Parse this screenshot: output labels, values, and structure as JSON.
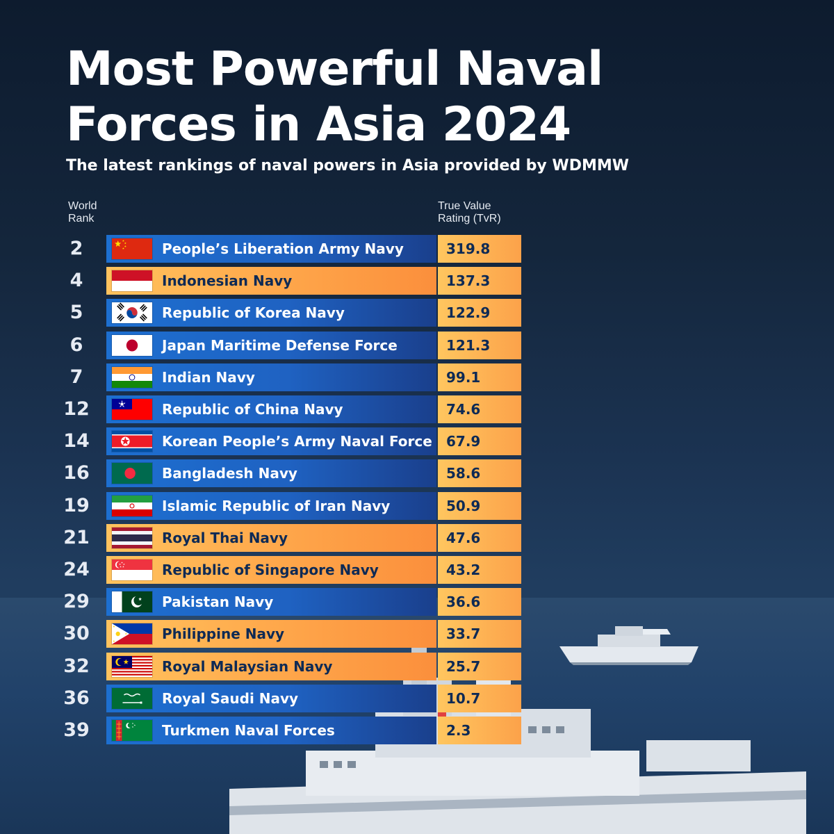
{
  "title": "Most Powerful Naval Forces in Asia 2024",
  "subtitle": "The latest rankings of naval powers in Asia provided by WDMMW",
  "headers": {
    "rank": "World Rank",
    "tvr": "True Value Rating (TvR)"
  },
  "colors": {
    "blue_bar": "#1f62c2",
    "orange_bar": "#ffab4d",
    "value_cell": "#fcb456",
    "dark_text": "#0e2a55"
  },
  "chart_data": {
    "type": "table",
    "title": "Most Powerful Naval Forces in Asia 2024",
    "columns": [
      "World Rank",
      "",
      "True Value Rating (TvR)"
    ],
    "rows": [
      {
        "rank": "2",
        "name": "People’s Liberation Army Navy",
        "tvr": "319.8",
        "flag": "china-flag-icon",
        "style": "blue"
      },
      {
        "rank": "4",
        "name": "Indonesian Navy",
        "tvr": "137.3",
        "flag": "indonesia-flag-icon",
        "style": "orange"
      },
      {
        "rank": "5",
        "name": "Republic of Korea Navy",
        "tvr": "122.9",
        "flag": "south-korea-flag-icon",
        "style": "blue"
      },
      {
        "rank": "6",
        "name": "Japan Maritime Defense Force",
        "tvr": "121.3",
        "flag": "japan-flag-icon",
        "style": "blue"
      },
      {
        "rank": "7",
        "name": "Indian Navy",
        "tvr": "99.1",
        "flag": "india-flag-icon",
        "style": "blue"
      },
      {
        "rank": "12",
        "name": "Republic of China Navy",
        "tvr": "74.6",
        "flag": "taiwan-flag-icon",
        "style": "blue"
      },
      {
        "rank": "14",
        "name": "Korean People’s Army Naval Force",
        "tvr": "67.9",
        "flag": "north-korea-flag-icon",
        "style": "blue"
      },
      {
        "rank": "16",
        "name": "Bangladesh Navy",
        "tvr": "58.6",
        "flag": "bangladesh-flag-icon",
        "style": "blue"
      },
      {
        "rank": "19",
        "name": "Islamic Republic of Iran Navy",
        "tvr": "50.9",
        "flag": "iran-flag-icon",
        "style": "blue"
      },
      {
        "rank": "21",
        "name": "Royal Thai Navy",
        "tvr": "47.6",
        "flag": "thailand-flag-icon",
        "style": "orange"
      },
      {
        "rank": "24",
        "name": "Republic of Singapore Navy",
        "tvr": "43.2",
        "flag": "singapore-flag-icon",
        "style": "orange"
      },
      {
        "rank": "29",
        "name": "Pakistan Navy",
        "tvr": "36.6",
        "flag": "pakistan-flag-icon",
        "style": "blue"
      },
      {
        "rank": "30",
        "name": "Philippine Navy",
        "tvr": "33.7",
        "flag": "philippines-flag-icon",
        "style": "orange"
      },
      {
        "rank": "32",
        "name": "Royal Malaysian Navy",
        "tvr": "25.7",
        "flag": "malaysia-flag-icon",
        "style": "orange"
      },
      {
        "rank": "36",
        "name": "Royal Saudi Navy",
        "tvr": "10.7",
        "flag": "saudi-arabia-flag-icon",
        "style": "blue"
      },
      {
        "rank": "39",
        "name": "Turkmen Naval Forces",
        "tvr": "2.3",
        "flag": "turkmenistan-flag-icon",
        "style": "blue"
      }
    ]
  }
}
